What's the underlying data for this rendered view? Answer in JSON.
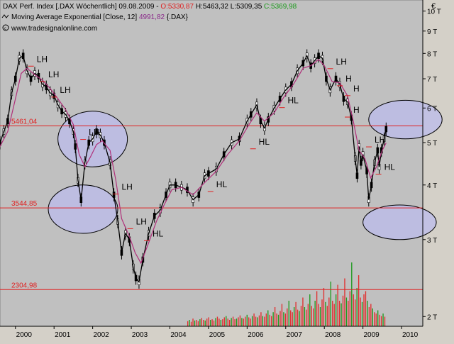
{
  "header": {
    "line1_name": "DAX Perf. Index [.DAX  Wöchentlich] 09.08.2009 - ",
    "line1_open": "O:5330,87",
    "line1_high_low": " H:5463,32 L:5309,35 ",
    "line1_close": "C:5369,98",
    "line2_name": "Moving Average Exponential [Close, 12] ",
    "line2_value": "4991,82",
    "line2_symbol": " {.DAX}",
    "source": "www.tradesignalonline.com",
    "currency": "€"
  },
  "colors": {
    "background": "#d4d0c8",
    "plot_background": "#c0c0c0",
    "candle_up": "#ffffff",
    "candle_outline": "#000000",
    "ema_line": "#b0307a",
    "hline": "#e02020",
    "ellipse_fill": "#bcbcec",
    "volume_up": "#1f9a1f",
    "volume_down": "#e03030",
    "open_text": "#e02020",
    "close_text": "#1a9a1a",
    "ema_text": "#8a2a8a"
  },
  "chart_data": {
    "type": "line",
    "y_scale": "log",
    "ylim": [
      1900,
      10600
    ],
    "xlim": [
      1999.6,
      2010.55
    ],
    "y_ticks": [
      {
        "value": 2000,
        "label": "2 T"
      },
      {
        "value": 3000,
        "label": "3 T"
      },
      {
        "value": 4000,
        "label": "4 T"
      },
      {
        "value": 5000,
        "label": "5 T"
      },
      {
        "value": 6000,
        "label": "6 T"
      },
      {
        "value": 7000,
        "label": "7 T"
      },
      {
        "value": 8000,
        "label": "8 T"
      },
      {
        "value": 9000,
        "label": "9 T"
      },
      {
        "value": 10000,
        "label": "10 T"
      }
    ],
    "x_ticks": [
      {
        "value": 2000,
        "label": "2000"
      },
      {
        "value": 2001,
        "label": "2001"
      },
      {
        "value": 2002,
        "label": "2002"
      },
      {
        "value": 2003,
        "label": "2003"
      },
      {
        "value": 2004,
        "label": "2004"
      },
      {
        "value": 2005,
        "label": "2005"
      },
      {
        "value": 2006,
        "label": "2006"
      },
      {
        "value": 2007,
        "label": "2007"
      },
      {
        "value": 2008,
        "label": "2008"
      },
      {
        "value": 2009,
        "label": "2009"
      },
      {
        "value": 2010,
        "label": "2010"
      }
    ],
    "horizontal_lines": [
      {
        "value": 5461.04,
        "label": "5461,04"
      },
      {
        "value": 3544.85,
        "label": "3544,85"
      },
      {
        "value": 2304.98,
        "label": "2304,98"
      }
    ],
    "series": [
      {
        "name": "DAX Perf. Index",
        "points": [
          [
            1999.6,
            5000
          ],
          [
            1999.7,
            5300
          ],
          [
            1999.8,
            5600
          ],
          [
            1999.9,
            6500
          ],
          [
            2000.0,
            7000
          ],
          [
            2000.1,
            7800
          ],
          [
            2000.2,
            7900
          ],
          [
            2000.3,
            7300
          ],
          [
            2000.4,
            7000
          ],
          [
            2000.5,
            7200
          ],
          [
            2000.6,
            7100
          ],
          [
            2000.7,
            6800
          ],
          [
            2000.8,
            6700
          ],
          [
            2000.9,
            6500
          ],
          [
            2001.0,
            6400
          ],
          [
            2001.1,
            6100
          ],
          [
            2001.2,
            5900
          ],
          [
            2001.3,
            5800
          ],
          [
            2001.4,
            5600
          ],
          [
            2001.5,
            5300
          ],
          [
            2001.55,
            4900
          ],
          [
            2001.62,
            4100
          ],
          [
            2001.7,
            3700
          ],
          [
            2001.8,
            4500
          ],
          [
            2001.9,
            5000
          ],
          [
            2002.0,
            5100
          ],
          [
            2002.1,
            5300
          ],
          [
            2002.2,
            5200
          ],
          [
            2002.3,
            5000
          ],
          [
            2002.45,
            4500
          ],
          [
            2002.55,
            3800
          ],
          [
            2002.65,
            3300
          ],
          [
            2002.75,
            2800
          ],
          [
            2002.85,
            3100
          ],
          [
            2002.95,
            3000
          ],
          [
            2003.05,
            2600
          ],
          [
            2003.12,
            2450
          ],
          [
            2003.2,
            2400
          ],
          [
            2003.3,
            2700
          ],
          [
            2003.45,
            3100
          ],
          [
            2003.6,
            3400
          ],
          [
            2003.75,
            3500
          ],
          [
            2003.9,
            3800
          ],
          [
            2004.0,
            4000
          ],
          [
            2004.15,
            4000
          ],
          [
            2004.3,
            3950
          ],
          [
            2004.45,
            3900
          ],
          [
            2004.6,
            3700
          ],
          [
            2004.75,
            3800
          ],
          [
            2004.9,
            4200
          ],
          [
            2005.0,
            4250
          ],
          [
            2005.2,
            4350
          ],
          [
            2005.4,
            4700
          ],
          [
            2005.6,
            5000
          ],
          [
            2005.8,
            5100
          ],
          [
            2006.0,
            5600
          ],
          [
            2006.1,
            5800
          ],
          [
            2006.25,
            6100
          ],
          [
            2006.35,
            5600
          ],
          [
            2006.45,
            5400
          ],
          [
            2006.55,
            5650
          ],
          [
            2006.7,
            6000
          ],
          [
            2006.85,
            6300
          ],
          [
            2007.0,
            6600
          ],
          [
            2007.15,
            6800
          ],
          [
            2007.3,
            7300
          ],
          [
            2007.45,
            7600
          ],
          [
            2007.55,
            7900
          ],
          [
            2007.65,
            7500
          ],
          [
            2007.75,
            7700
          ],
          [
            2007.85,
            7900
          ],
          [
            2007.95,
            7800
          ],
          [
            2008.05,
            7000
          ],
          [
            2008.15,
            6600
          ],
          [
            2008.3,
            7000
          ],
          [
            2008.4,
            6800
          ],
          [
            2008.5,
            6300
          ],
          [
            2008.6,
            6200
          ],
          [
            2008.7,
            5700
          ],
          [
            2008.8,
            4600
          ],
          [
            2008.85,
            4200
          ],
          [
            2008.9,
            4900
          ],
          [
            2008.95,
            4500
          ],
          [
            2009.0,
            4700
          ],
          [
            2009.1,
            4300
          ],
          [
            2009.15,
            3700
          ],
          [
            2009.22,
            4000
          ],
          [
            2009.3,
            4500
          ],
          [
            2009.38,
            4800
          ],
          [
            2009.42,
            4400
          ],
          [
            2009.48,
            4800
          ],
          [
            2009.55,
            5100
          ],
          [
            2009.6,
            5370
          ]
        ]
      },
      {
        "name": "Moving Average Exponential [Close, 12]",
        "points": [
          [
            1999.6,
            4900
          ],
          [
            1999.8,
            5300
          ],
          [
            2000.0,
            6300
          ],
          [
            2000.15,
            7200
          ],
          [
            2000.3,
            7400
          ],
          [
            2000.5,
            7150
          ],
          [
            2000.7,
            6950
          ],
          [
            2000.9,
            6650
          ],
          [
            2001.1,
            6300
          ],
          [
            2001.3,
            5950
          ],
          [
            2001.5,
            5500
          ],
          [
            2001.65,
            4700
          ],
          [
            2001.8,
            4400
          ],
          [
            2001.95,
            4650
          ],
          [
            2002.1,
            4950
          ],
          [
            2002.25,
            5050
          ],
          [
            2002.45,
            4800
          ],
          [
            2002.6,
            4100
          ],
          [
            2002.75,
            3350
          ],
          [
            2002.95,
            3050
          ],
          [
            2003.1,
            2800
          ],
          [
            2003.25,
            2650
          ],
          [
            2003.45,
            2950
          ],
          [
            2003.65,
            3300
          ],
          [
            2003.85,
            3600
          ],
          [
            2004.05,
            3900
          ],
          [
            2004.3,
            3950
          ],
          [
            2004.6,
            3800
          ],
          [
            2004.9,
            4050
          ],
          [
            2005.2,
            4300
          ],
          [
            2005.5,
            4700
          ],
          [
            2005.8,
            5050
          ],
          [
            2006.05,
            5500
          ],
          [
            2006.25,
            5850
          ],
          [
            2006.45,
            5600
          ],
          [
            2006.7,
            5850
          ],
          [
            2006.95,
            6350
          ],
          [
            2007.2,
            6800
          ],
          [
            2007.45,
            7400
          ],
          [
            2007.65,
            7500
          ],
          [
            2007.85,
            7750
          ],
          [
            2008.0,
            7500
          ],
          [
            2008.2,
            6900
          ],
          [
            2008.4,
            6850
          ],
          [
            2008.6,
            6400
          ],
          [
            2008.75,
            5600
          ],
          [
            2008.9,
            4800
          ],
          [
            2009.05,
            4600
          ],
          [
            2009.2,
            4150
          ],
          [
            2009.35,
            4400
          ],
          [
            2009.5,
            4800
          ],
          [
            2009.6,
            4991.82
          ]
        ]
      }
    ],
    "annotations": [
      {
        "label": "LH",
        "x": 2000.55,
        "y": 7650
      },
      {
        "label": "LH",
        "x": 2000.85,
        "y": 7050
      },
      {
        "label": "LH",
        "x": 2001.15,
        "y": 6500
      },
      {
        "label": "LH",
        "x": 2001.9,
        "y": 5200
      },
      {
        "label": "LH",
        "x": 2002.75,
        "y": 3900
      },
      {
        "label": "LH",
        "x": 2003.12,
        "y": 3250
      },
      {
        "label": "HL",
        "x": 2003.55,
        "y": 3050
      },
      {
        "label": "HL",
        "x": 2005.2,
        "y": 3950
      },
      {
        "label": "HL",
        "x": 2006.3,
        "y": 4950
      },
      {
        "label": "HL",
        "x": 2007.05,
        "y": 6150
      },
      {
        "label": "LH",
        "x": 2008.3,
        "y": 7550
      },
      {
        "label": "H",
        "x": 2008.55,
        "y": 6900
      },
      {
        "label": "H",
        "x": 2008.75,
        "y": 6550
      },
      {
        "label": "H",
        "x": 2008.75,
        "y": 5850
      },
      {
        "label": "LH",
        "x": 2009.3,
        "y": 5000
      },
      {
        "label": "HL",
        "x": 2009.55,
        "y": 4330
      }
    ],
    "ellipses": [
      {
        "cx": 2002.0,
        "cy": 5100,
        "rx": 0.9,
        "ry_top": 5900,
        "ry_bottom": 4400
      },
      {
        "cx": 2001.75,
        "cy": 3500,
        "rx": 0.9,
        "ry_top": 4000,
        "ry_bottom": 3100
      },
      {
        "cx": 2010.1,
        "cy": 5650,
        "rx": 0.95,
        "ry_top": 6250,
        "ry_bottom": 5100
      },
      {
        "cx": 2009.95,
        "cy": 3300,
        "rx": 0.95,
        "ry_top": 3600,
        "ry_bottom": 3000
      }
    ],
    "volume": {
      "x_start": 2004.45,
      "x_end": 2009.6,
      "values": [
        0.08,
        0.1,
        0.07,
        0.12,
        0.09,
        0.1,
        0.08,
        0.11,
        0.13,
        0.1,
        0.09,
        0.12,
        0.14,
        0.1,
        0.11,
        0.09,
        0.13,
        0.15,
        0.12,
        0.1,
        0.11,
        0.14,
        0.16,
        0.12,
        0.1,
        0.13,
        0.15,
        0.11,
        0.12,
        0.14,
        0.17,
        0.13,
        0.12,
        0.15,
        0.18,
        0.14,
        0.12,
        0.16,
        0.2,
        0.15,
        0.14,
        0.17,
        0.22,
        0.16,
        0.15,
        0.2,
        0.25,
        0.18,
        0.16,
        0.22,
        0.3,
        0.2,
        0.18,
        0.24,
        0.35,
        0.22,
        0.2,
        0.28,
        0.4,
        0.25,
        0.22,
        0.3,
        0.38,
        0.26,
        0.24,
        0.32,
        0.45,
        0.3,
        0.26,
        0.35,
        0.5,
        0.32,
        0.28,
        0.4,
        0.55,
        0.35,
        0.3,
        0.42,
        0.6,
        0.38,
        0.32,
        0.45,
        0.7,
        0.4,
        0.35,
        0.5,
        0.65,
        0.4,
        0.36,
        0.48,
        0.75,
        0.45,
        0.4,
        0.55,
        1.0,
        0.5,
        0.42,
        0.6,
        0.8,
        0.45,
        0.38,
        0.5,
        0.55,
        0.4,
        0.3,
        0.35,
        0.28,
        0.22,
        0.2,
        0.25,
        0.18,
        0.16,
        0.2,
        0.15
      ]
    }
  }
}
